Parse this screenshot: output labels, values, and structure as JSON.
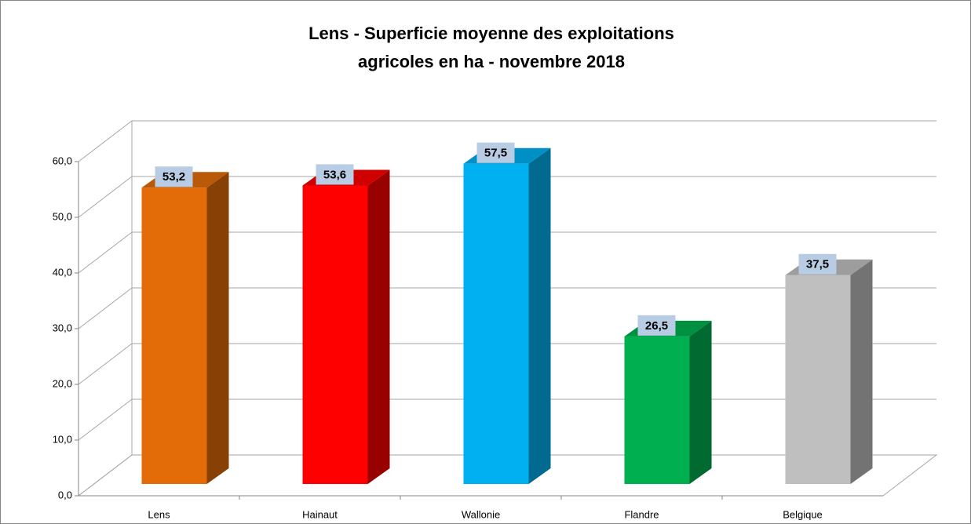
{
  "chart_data": {
    "type": "bar3d",
    "title": [
      "Lens - Superficie moyenne des exploitations",
      "agricoles en ha - novembre 2018"
    ],
    "categories": [
      "Lens",
      "Hainaut",
      "Wallonie",
      "Flandre",
      "Belgique"
    ],
    "values": [
      53.2,
      53.6,
      57.5,
      26.5,
      37.5
    ],
    "value_labels": [
      "53,2",
      "53,6",
      "57,5",
      "26,5",
      "37,5"
    ],
    "colors": [
      "#e36c09",
      "#ff0000",
      "#00b0f0",
      "#00b050",
      "#bfbfbf"
    ],
    "ylim": [
      0,
      60
    ],
    "yticks": [
      {
        "value": 0,
        "label": "0,0"
      },
      {
        "value": 10,
        "label": "10,0"
      },
      {
        "value": 20,
        "label": "20,0"
      },
      {
        "value": 30,
        "label": "30,0"
      },
      {
        "value": 40,
        "label": "40,0"
      },
      {
        "value": 50,
        "label": "50,0"
      },
      {
        "value": 60,
        "label": "60,0"
      }
    ],
    "grid": true
  }
}
